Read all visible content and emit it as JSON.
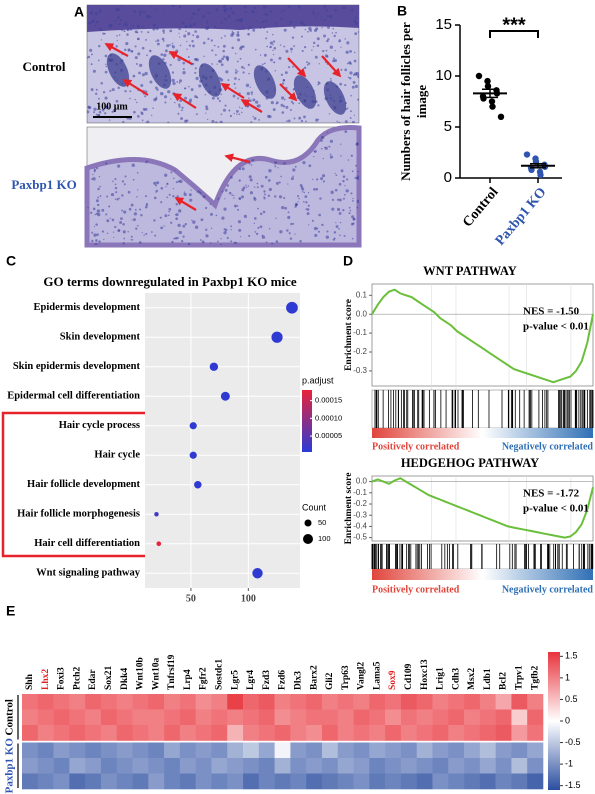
{
  "panel_labels": [
    "A",
    "B",
    "C",
    "D",
    "E"
  ],
  "micrographs": {
    "top_label": "Control",
    "bottom_label": "Paxbp1 KO",
    "scale_bar": "100 μm"
  },
  "chart_data": [
    {
      "type": "strip",
      "ylabel": [
        "Numbers of hair follicles per",
        "image"
      ],
      "annotation": "***",
      "ylim": [
        0,
        15
      ],
      "yticks": [
        0,
        5,
        10,
        15
      ],
      "series": [
        {
          "name": "Control",
          "color": "#000000",
          "values": [
            10.0,
            9.5,
            9.0,
            8.6,
            8.3,
            8.0,
            7.8,
            7.5,
            7.0,
            6.0
          ],
          "mean": 8.3,
          "sem": 0.4
        },
        {
          "name": "Paxbp1 KO",
          "color": "#2f55b0",
          "values": [
            2.3,
            1.9,
            1.6,
            1.3,
            1.1,
            1.0,
            0.8,
            0.6,
            0.3
          ],
          "mean": 1.2,
          "sem": 0.2
        }
      ]
    },
    {
      "type": "dotplot",
      "title": "GO terms downregulated in Paxbp1 KO mice",
      "categories": [
        "Epidermis development",
        "Skin development",
        "Skin epidermis development",
        "Epidermal cell differentiation",
        "Hair cycle process",
        "Hair cycle",
        "Hair follicle development",
        "Hair follicle morphogenesis",
        "Hair cell differentiation",
        "Wnt signaling pathway"
      ],
      "values": [
        138,
        125,
        70,
        80,
        52,
        52,
        56,
        20,
        22,
        108
      ],
      "p_adjust": [
        1e-05,
        1e-05,
        1e-05,
        1e-05,
        1e-05,
        1e-05,
        1e-05,
        3e-05,
        0.00018,
        1e-05
      ],
      "xlim": [
        10,
        145
      ],
      "xticks": [
        50,
        100
      ],
      "clim": [
        5e-06,
        0.00018
      ],
      "colors": [
        "#2a3bd6",
        "#e8233a"
      ],
      "color_title": "p.adjust",
      "color_ticks": [
        0.00015,
        {
          "value": 0.0001,
          "label": "0.00010"
        },
        5e-05
      ],
      "size_title": "Count",
      "size_ticks": [
        50,
        100
      ],
      "grid": true
    },
    {
      "type": "gsea",
      "title": "WNT PATHWAY",
      "ylabel": "Enrichment score",
      "annotations": [
        "NES = -1.50",
        "p-value < 0.01"
      ],
      "color": "#6abf3a",
      "values": [
        0.0,
        0.05,
        0.09,
        0.12,
        0.13,
        0.11,
        0.1,
        0.09,
        0.07,
        0.05,
        0.03,
        0.01,
        -0.02,
        -0.04,
        -0.06,
        -0.09,
        -0.11,
        -0.13,
        -0.15,
        -0.17,
        -0.19,
        -0.21,
        -0.23,
        -0.25,
        -0.27,
        -0.29,
        -0.3,
        -0.31,
        -0.32,
        -0.33,
        -0.34,
        -0.35,
        -0.36,
        -0.35,
        -0.34,
        -0.33,
        -0.3,
        -0.25,
        -0.15,
        0.0
      ],
      "ylim": [
        -0.38,
        0.16
      ],
      "yticks": [
        0.1,
        {
          "value": 0,
          "label": "0.0"
        },
        -0.1,
        -0.2,
        -0.3
      ],
      "gradient_labels": [
        "Positively correlated",
        "Negatively correlated"
      ],
      "gradient_colors": [
        "#e0453c",
        "#ffffff",
        "#2f6fb5"
      ]
    },
    {
      "type": "gsea",
      "title": "HEDGEHOG PATHWAY",
      "ylabel": "Enrichment score",
      "annotations": [
        "NES = -1.72",
        "p-value < 0.01"
      ],
      "color": "#6abf3a",
      "values": [
        0.0,
        0.02,
        0.0,
        -0.02,
        0.01,
        0.03,
        0.0,
        -0.03,
        -0.06,
        -0.09,
        -0.12,
        -0.14,
        -0.16,
        -0.18,
        -0.2,
        -0.22,
        -0.24,
        -0.26,
        -0.28,
        -0.3,
        -0.32,
        -0.34,
        -0.36,
        -0.38,
        -0.4,
        -0.41,
        -0.42,
        -0.43,
        -0.44,
        -0.45,
        -0.46,
        -0.47,
        -0.48,
        -0.49,
        -0.5,
        -0.49,
        -0.45,
        -0.38,
        -0.25,
        -0.05
      ],
      "ylim": [
        -0.53,
        0.05
      ],
      "yticks": [
        {
          "value": 0,
          "label": "0.0"
        },
        -0.1,
        -0.2,
        -0.3,
        -0.4,
        -0.5
      ],
      "gradient_labels": [
        "Positively correlated",
        "Negatively correlated"
      ],
      "gradient_colors": [
        "#e0453c",
        "#ffffff",
        "#2f6fb5"
      ]
    },
    {
      "type": "heatmap",
      "categories": [
        "Shh",
        "Lhx2",
        "Foxi3",
        "Ptch2",
        "Edar",
        "Sox21",
        "Dkk4",
        "Wnt10b",
        "Wnt10a",
        "Tnfrsf19",
        "Lrp4",
        "Fgfr2",
        "Sostdc1",
        "Lgr5",
        "Lgr4",
        "Fzd3",
        "Fzd6",
        "Dlx3",
        "Barx2",
        "Gli2",
        "Trp63",
        "Vangl2",
        "Lama5",
        "Sox9",
        "Cd109",
        "Hoxc13",
        "Lrig1",
        "Cdh3",
        "Msx2",
        "Ldb1",
        "Bcl2",
        "Trpv1",
        "Tgfb2"
      ],
      "category_colors": [
        "#000000",
        "#e02020",
        "#000000",
        "#000000",
        "#000000",
        "#000000",
        "#000000",
        "#000000",
        "#000000",
        "#000000",
        "#000000",
        "#000000",
        "#000000",
        "#000000",
        "#000000",
        "#000000",
        "#000000",
        "#000000",
        "#000000",
        "#000000",
        "#000000",
        "#000000",
        "#000000",
        "#e02020",
        "#000000",
        "#000000",
        "#000000",
        "#000000",
        "#000000",
        "#000000",
        "#000000",
        "#000000",
        "#000000"
      ],
      "series": [
        {
          "name": "Control",
          "color": "#000000",
          "values": [
            [
              1.1,
              1.2,
              1.1,
              1.0,
              1.2,
              1.1,
              1.0,
              1.1,
              1.2,
              1.0,
              1.1,
              0.9,
              1.0,
              1.5,
              1.2,
              1.3,
              1.0,
              1.1,
              1.2,
              1.0,
              1.1,
              1.0,
              1.2,
              1.1,
              1.3,
              1.2,
              1.0,
              1.1,
              1.2,
              1.0,
              0.7,
              1.3,
              1.0
            ],
            [
              1.0,
              1.1,
              1.2,
              1.1,
              1.0,
              1.2,
              1.1,
              1.0,
              1.0,
              1.1,
              1.2,
              1.0,
              1.1,
              1.0,
              1.1,
              1.2,
              0.9,
              1.0,
              1.1,
              1.1,
              1.0,
              1.2,
              1.1,
              0.9,
              1.1,
              1.0,
              1.1,
              1.2,
              1.0,
              1.1,
              1.2,
              0.4,
              1.2
            ],
            [
              1.2,
              1.0,
              1.1,
              1.2,
              1.1,
              1.0,
              1.2,
              1.1,
              1.0,
              1.2,
              1.0,
              1.1,
              1.2,
              0.6,
              1.0,
              1.1,
              1.2,
              1.0,
              0.9,
              1.2,
              1.0,
              1.1,
              1.0,
              1.2,
              1.0,
              1.1,
              1.2,
              1.0,
              1.1,
              1.2,
              1.3,
              0.8,
              1.1
            ]
          ]
        },
        {
          "name": "Paxbp1 KO",
          "color": "#2f55b0",
          "values": [
            [
              -1.0,
              -1.1,
              -0.9,
              -1.0,
              -1.1,
              -1.0,
              -0.9,
              -1.0,
              -1.1,
              -0.8,
              -1.0,
              -0.9,
              -1.0,
              -0.7,
              -0.5,
              -0.8,
              -0.1,
              -0.9,
              -1.0,
              -0.6,
              -0.9,
              -1.0,
              -0.8,
              -0.9,
              -1.0,
              -0.7,
              -0.9,
              -1.0,
              -0.8,
              -0.6,
              -0.9,
              -1.0,
              -0.8
            ],
            [
              -0.9,
              -1.0,
              -1.1,
              -0.8,
              -0.9,
              -1.1,
              -1.0,
              -0.9,
              -1.0,
              -1.1,
              -0.9,
              -1.0,
              -0.8,
              -0.9,
              -1.0,
              -1.1,
              -0.7,
              -1.0,
              -0.9,
              -1.0,
              -0.8,
              -0.9,
              -1.1,
              -1.0,
              -0.9,
              -1.0,
              -1.1,
              -0.9,
              -1.0,
              -0.8,
              -1.0,
              -0.6,
              -1.0
            ],
            [
              -1.2,
              -1.1,
              -1.0,
              -1.3,
              -1.2,
              -1.0,
              -1.1,
              -1.2,
              -0.9,
              -1.1,
              -1.2,
              -1.0,
              -1.1,
              -1.0,
              -1.3,
              -1.1,
              -1.2,
              -1.1,
              -1.3,
              -1.2,
              -1.1,
              -1.0,
              -1.2,
              -1.1,
              -1.2,
              -1.3,
              -1.0,
              -1.1,
              -1.2,
              -1.3,
              -1.1,
              -1.2,
              -1.4
            ]
          ]
        }
      ],
      "zlim": [
        -1.6,
        1.6
      ],
      "zticks": [
        1.5,
        1,
        0.5,
        0,
        -0.5,
        -1,
        -1.5
      ],
      "colors": [
        "#2b4ea0",
        "#ffffff",
        "#e8343c"
      ]
    }
  ]
}
